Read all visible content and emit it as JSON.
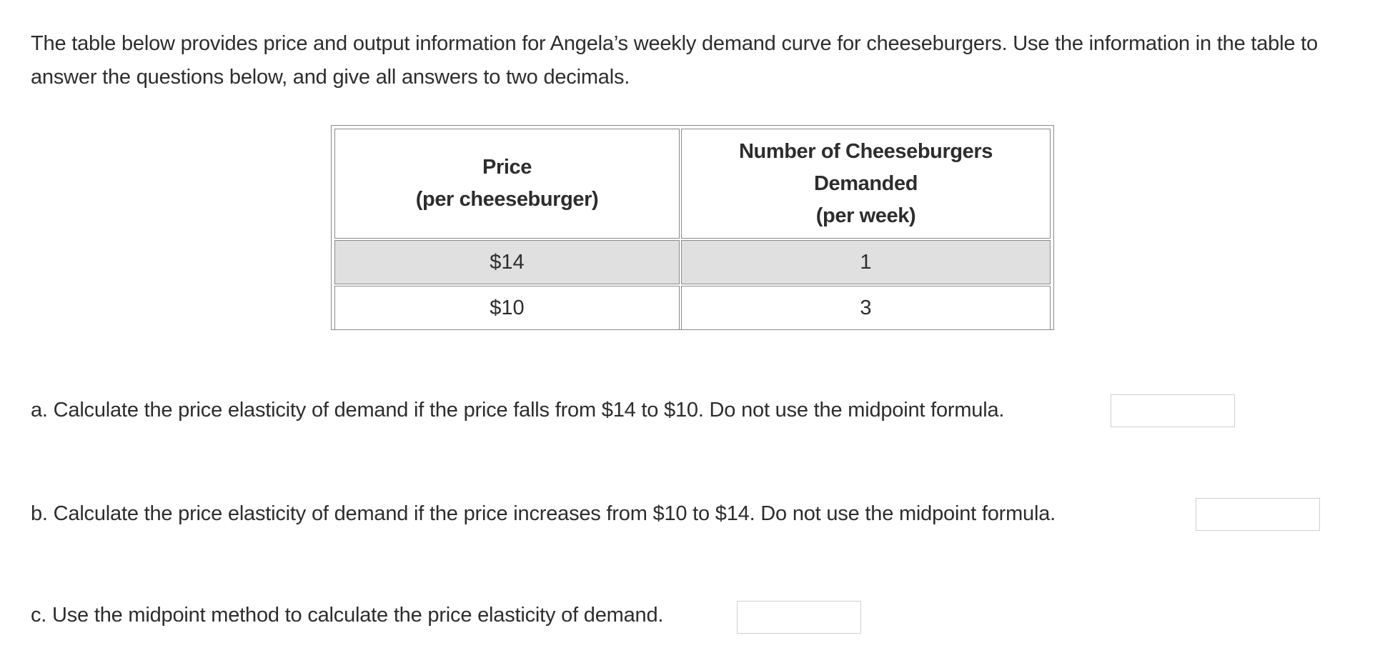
{
  "intro": {
    "text": "The table below provides price and output information for Angela’s weekly demand curve for cheeseburgers. Use the information in the table to answer the questions below, and give all answers to two decimals."
  },
  "table": {
    "headers": [
      [
        "Price",
        "(per cheeseburger)"
      ],
      [
        "Number of Cheeseburgers",
        "Demanded",
        "(per week)"
      ]
    ],
    "rows": [
      [
        "$14",
        "1"
      ],
      [
        "$10",
        "3"
      ]
    ]
  },
  "questions": {
    "a": {
      "text": "a. Calculate the price elasticity of demand if the price falls from $14 to $10. Do not use the midpoint formula.",
      "value": ""
    },
    "b": {
      "text": "b. Calculate the price elasticity of demand if the price increases from $10 to $14. Do not use the midpoint formula.",
      "value": ""
    },
    "c": {
      "text": "c. Use the midpoint method to calculate the price elasticity of demand.",
      "value": ""
    }
  },
  "colors": {
    "text": "#2d2d2d",
    "border": "#8a8a8a",
    "shaded_row": "#e0e0e0",
    "input_border": "#cfcfcf"
  }
}
